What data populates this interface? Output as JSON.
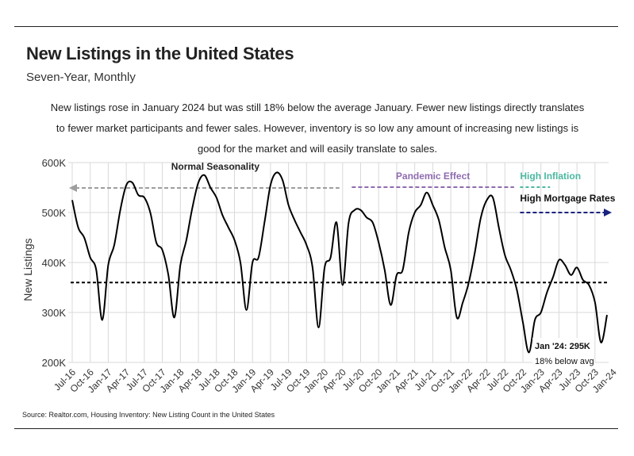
{
  "header": {
    "title": "New Listings in the United States",
    "subtitle": "Seven-Year, Monthly",
    "description": "New listings rose in January 2024 but was still 18% below the average January. Fewer new listings directly translates to fewer market participants and fewer sales. However, inventory is so low any amount of increasing new listings is good for the market and will easily translate to sales."
  },
  "footer": {
    "source": "Source:  Realtor.com, Housing Inventory: New Listing Count in the United States"
  },
  "colors": {
    "line": "#000000",
    "grid": "#d9d9d9",
    "normal_seasonality": "#9e9e9e",
    "pandemic_effect": "#8e6bb0",
    "high_inflation": "#4bb8a0",
    "high_mortgage_rates": "#1a237e",
    "average_line": "#000000"
  },
  "chart_data": {
    "type": "line",
    "ylabel": "New Listings",
    "xlabel": "",
    "ylim": [
      200000,
      600000
    ],
    "y_ticks": [
      200000,
      300000,
      400000,
      500000,
      600000
    ],
    "y_tick_labels": [
      "200K",
      "300K",
      "400K",
      "500K",
      "600K"
    ],
    "x_tick_labels": [
      "Jul-16",
      "Oct-16",
      "Jan-17",
      "Apr-17",
      "Jul-17",
      "Oct-17",
      "Jan-18",
      "Apr-18",
      "Jul-18",
      "Oct-18",
      "Jan-19",
      "Apr-19",
      "Jul-19",
      "Oct-19",
      "Jan-20",
      "Apr-20",
      "Jul-20",
      "Oct-20",
      "Jan-21",
      "Apr-21",
      "Jul-21",
      "Oct-21",
      "Jan-22",
      "Apr-22",
      "Jul-22",
      "Oct-22",
      "Jan-23",
      "Apr-23",
      "Jul-23",
      "Oct-23",
      "Jan-24"
    ],
    "grid": true,
    "series": [
      {
        "name": "New Listings",
        "start": "Jul-16",
        "values": [
          525000,
          470000,
          450000,
          410000,
          385000,
          285000,
          395000,
          435000,
          505000,
          555000,
          560000,
          535000,
          530000,
          500000,
          440000,
          425000,
          375000,
          290000,
          395000,
          445000,
          510000,
          560000,
          575000,
          550000,
          530000,
          495000,
          470000,
          445000,
          400000,
          305000,
          400000,
          410000,
          480000,
          555000,
          580000,
          565000,
          515000,
          485000,
          460000,
          435000,
          390000,
          270000,
          390000,
          410000,
          480000,
          355000,
          480000,
          505000,
          505000,
          490000,
          480000,
          440000,
          385000,
          315000,
          375000,
          385000,
          460000,
          500000,
          515000,
          540000,
          515000,
          485000,
          430000,
          385000,
          290000,
          320000,
          360000,
          420000,
          490000,
          525000,
          530000,
          470000,
          415000,
          385000,
          345000,
          280000,
          220000,
          285000,
          300000,
          340000,
          370000,
          405000,
          395000,
          375000,
          390000,
          365000,
          355000,
          320000,
          240000,
          295000
        ]
      }
    ],
    "average_line": {
      "value": 360000,
      "style": "dashed"
    },
    "annotations": [
      {
        "text": "Normal Seasonality",
        "span": [
          "Jul-16",
          "Apr-20"
        ],
        "arrow": "left"
      },
      {
        "text": "Pandemic Effect",
        "span": [
          "May-20",
          "Aug-22"
        ],
        "arrow": "none"
      },
      {
        "text": "High Inflation",
        "span": [
          "Sep-22",
          "Feb-23"
        ],
        "arrow": "none"
      },
      {
        "text": "High Mortgage Rates",
        "span": [
          "Sep-22",
          "Dec-23"
        ],
        "arrow": "right"
      },
      {
        "text": "Jan '24: 295K",
        "point": "Jan-24"
      },
      {
        "text": "18% below avg",
        "point": "Jan-24"
      }
    ]
  }
}
